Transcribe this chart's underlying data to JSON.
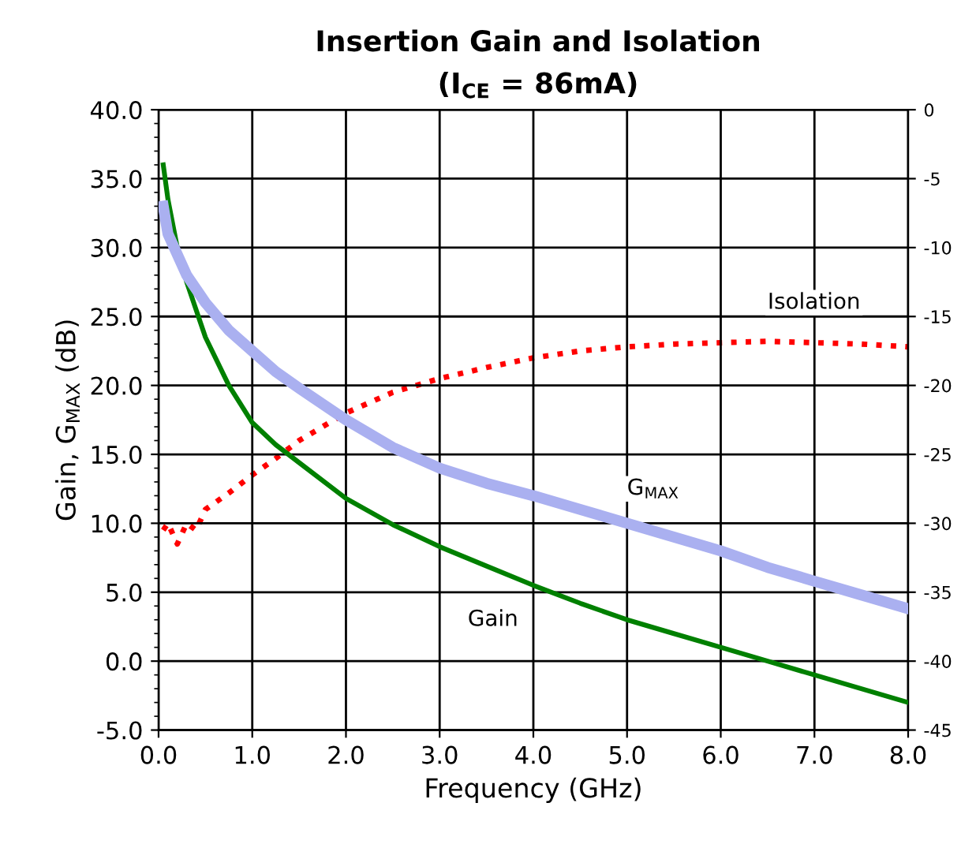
{
  "chart_data": {
    "type": "line",
    "title": "Insertion Gain and Isolation",
    "subtitle": "(I$_{CE}$ = 86mA)",
    "xlabel": "Frequency (GHz)",
    "ylabel": "Gain, G$_{MAX}$ (dB)",
    "xlim": [
      0,
      8
    ],
    "xticks": [
      {
        "value": 0,
        "label": "0.0"
      },
      {
        "value": 1,
        "label": "1.0"
      },
      {
        "value": 2,
        "label": "2.0"
      },
      {
        "value": 3,
        "label": "3.0"
      },
      {
        "value": 4,
        "label": "4.0"
      },
      {
        "value": 5,
        "label": "5.0"
      },
      {
        "value": 6,
        "label": "6.0"
      },
      {
        "value": 7,
        "label": "7.0"
      },
      {
        "value": 8,
        "label": "8.0"
      }
    ],
    "ylim": [
      -5,
      40
    ],
    "yticks": [
      {
        "value": -5,
        "label": "-5.0"
      },
      {
        "value": 0,
        "label": "0.0"
      },
      {
        "value": 5,
        "label": "5.0"
      },
      {
        "value": 10,
        "label": "10.0"
      },
      {
        "value": 15,
        "label": "15.0"
      },
      {
        "value": 20,
        "label": "20.0"
      },
      {
        "value": 25,
        "label": "25.0"
      },
      {
        "value": 30,
        "label": "30.0"
      },
      {
        "value": 35,
        "label": "35.0"
      },
      {
        "value": 40,
        "label": "40.0"
      }
    ],
    "y2lim": [
      -45,
      0
    ],
    "y2ticks": [
      -45,
      -40,
      -35,
      -30,
      -25,
      -20,
      -15,
      -10,
      -5,
      0
    ],
    "grid": true,
    "legend": false,
    "series": [
      {
        "name": "Gain",
        "color": "#008000",
        "line_style": "solid",
        "x": [
          0.05,
          0.1,
          0.2,
          0.3,
          0.5,
          0.75,
          1.0,
          1.25,
          1.5,
          2.0,
          2.5,
          3.0,
          3.5,
          4.0,
          4.5,
          5.0,
          5.5,
          6.0,
          6.5,
          7.0,
          7.5,
          8.0
        ],
        "values": [
          36.0,
          33.5,
          30.0,
          27.5,
          23.5,
          20.0,
          17.3,
          15.7,
          14.4,
          11.8,
          9.9,
          8.3,
          6.9,
          5.5,
          4.2,
          3.0,
          2.0,
          1.0,
          0.0,
          -1.0,
          -2.0,
          -3.0
        ]
      },
      {
        "name": "G$_{MAX}$",
        "color": "#aab0f0",
        "line_style": "solid",
        "x": [
          0.05,
          0.1,
          0.2,
          0.3,
          0.5,
          0.75,
          1.0,
          1.25,
          1.5,
          2.0,
          2.5,
          3.0,
          3.5,
          4.0,
          4.5,
          5.0,
          5.5,
          6.0,
          6.5,
          7.0,
          7.5,
          8.0
        ],
        "values": [
          33.0,
          31.0,
          29.5,
          28.0,
          26.0,
          24.0,
          22.5,
          21.0,
          19.8,
          17.5,
          15.5,
          14.0,
          12.9,
          12.0,
          11.0,
          10.0,
          9.0,
          8.0,
          6.8,
          5.8,
          4.8,
          3.8
        ]
      },
      {
        "name": "Isolation",
        "color": "#ff0000",
        "line_style": "dotted",
        "axis": "y2",
        "x": [
          0.05,
          0.1,
          0.2,
          0.3,
          0.4,
          0.5,
          0.75,
          1.0,
          1.25,
          1.5,
          2.0,
          2.5,
          3.0,
          3.5,
          4.0,
          4.5,
          5.0,
          5.5,
          6.0,
          6.5,
          7.0,
          7.5,
          8.0
        ],
        "values": [
          -30.5,
          -30.0,
          -31.5,
          -30.0,
          -30.5,
          -29.0,
          -27.8,
          -26.5,
          -25.3,
          -24.0,
          -22.0,
          -20.5,
          -19.5,
          -18.7,
          -18.0,
          -17.5,
          -17.2,
          -17.0,
          -16.9,
          -16.8,
          -16.9,
          -17.0,
          -17.2
        ]
      }
    ]
  }
}
